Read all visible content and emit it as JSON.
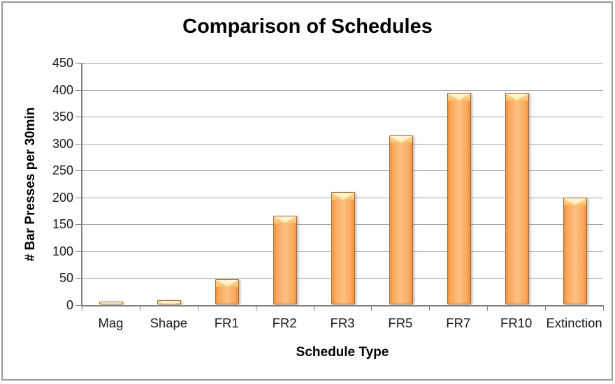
{
  "frame": {
    "background": "#ffffff",
    "border_color": "#999999"
  },
  "chart_data": {
    "type": "bar",
    "title": "Comparison of Schedules",
    "xlabel": "Schedule Type",
    "ylabel": "# Bar Presses per 30min",
    "categories": [
      "Mag",
      "Shape",
      "FR1",
      "FR2",
      "FR3",
      "FR5",
      "FR7",
      "FR10",
      "Extinction"
    ],
    "values": [
      4,
      6,
      46,
      164,
      207,
      313,
      392,
      392,
      197
    ],
    "ylim": [
      0,
      450
    ],
    "ytick_step": 50,
    "grid": true,
    "legend_position": "none",
    "bar_color": "#FBAC5E",
    "bar_highlight_color": "#FFF3CF",
    "bar_border_color": "#A4672C",
    "gridline_color": "#A3A3A3",
    "axis_color": "#808080",
    "title_color": "#000000",
    "tick_label_color": "#1A1A1A"
  }
}
